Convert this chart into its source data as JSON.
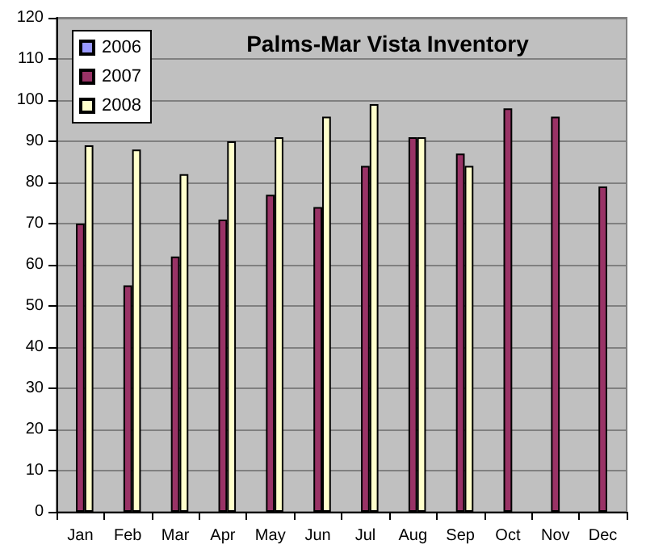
{
  "chart_data": {
    "type": "bar",
    "title": "Palms-Mar Vista Inventory",
    "categories": [
      "Jan",
      "Feb",
      "Mar",
      "Apr",
      "May",
      "Jun",
      "Jul",
      "Aug",
      "Sep",
      "Oct",
      "Nov",
      "Dec"
    ],
    "series": [
      {
        "name": "2006",
        "color": "#9999ff",
        "values": [
          null,
          null,
          null,
          null,
          null,
          null,
          null,
          null,
          null,
          null,
          null,
          null
        ]
      },
      {
        "name": "2007",
        "color": "#993366",
        "values": [
          70,
          55,
          62,
          71,
          77,
          74,
          84,
          91,
          87,
          98,
          96,
          79
        ]
      },
      {
        "name": "2008",
        "color": "#ffffcc",
        "values": [
          89,
          88,
          82,
          90,
          91,
          96,
          99,
          91,
          84,
          null,
          null,
          null
        ]
      }
    ],
    "ylim": [
      0,
      120
    ],
    "yticks": [
      0,
      10,
      20,
      30,
      40,
      50,
      60,
      70,
      80,
      90,
      100,
      110,
      120
    ],
    "grid": "y",
    "legend": "top left"
  }
}
